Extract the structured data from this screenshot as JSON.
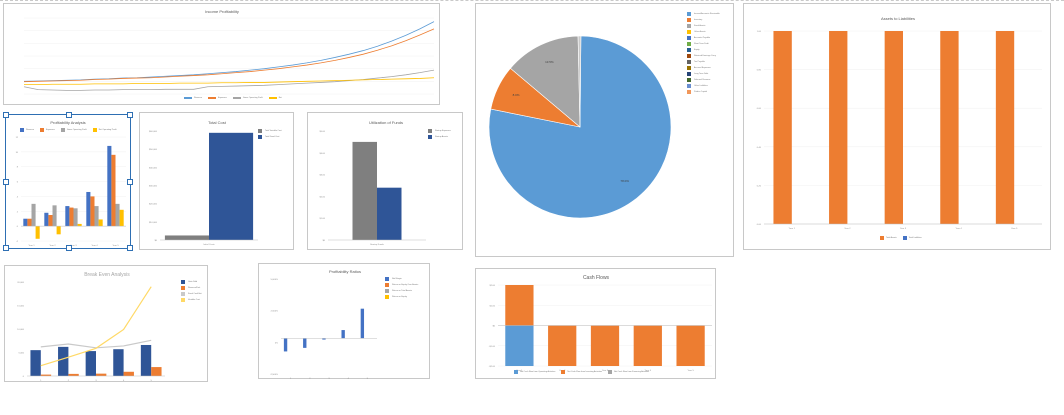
{
  "colors": {
    "blue": "#5b9bd5",
    "orange": "#ed7d31",
    "gray": "#a5a5a5",
    "yellow": "#ffc000",
    "navy": "#2f5597",
    "darkgray": "#7f7f7f",
    "text": "#595959"
  },
  "chart_data": [
    {
      "id": "income",
      "type": "line",
      "title": "Income Profitability",
      "y_ticks": [
        "",
        "",
        "",
        "",
        "",
        "",
        ""
      ],
      "x": [
        1,
        2,
        3,
        4,
        5,
        6,
        7,
        8,
        9,
        10,
        11,
        12,
        13,
        14,
        15,
        16,
        17,
        18,
        19,
        20,
        21,
        22,
        23,
        24,
        25,
        26,
        27,
        28,
        29,
        30
      ],
      "series": [
        {
          "name": "Revenue",
          "color": "#5b9bd5",
          "values": [
            0.5,
            0.6,
            0.7,
            0.8,
            0.9,
            1.1,
            1.2,
            1.4,
            1.5,
            1.7,
            1.9,
            2.1,
            2.3,
            2.6,
            2.9,
            3.2,
            3.6,
            4.0,
            4.5,
            5.0,
            5.6,
            6.3,
            7.1,
            8.0,
            9.0,
            10.2,
            11.6,
            13.2,
            15.0,
            17.0
          ]
        },
        {
          "name": "Expenses",
          "color": "#ed7d31",
          "values": [
            0.4,
            0.5,
            0.6,
            0.7,
            0.8,
            1.0,
            1.1,
            1.3,
            1.4,
            1.5,
            1.7,
            1.9,
            2.1,
            2.3,
            2.6,
            2.9,
            3.2,
            3.6,
            4.0,
            4.5,
            5.0,
            5.6,
            6.3,
            7.1,
            8.0,
            9.1,
            10.3,
            11.7,
            13.3,
            15.0
          ]
        },
        {
          "name": "Gross Operating Profit",
          "color": "#a5a5a5",
          "values": [
            -1.0,
            -1.8,
            -1.9,
            -2.0,
            -2.0,
            -1.9,
            -1.9,
            -1.8,
            -1.8,
            -1.8,
            -1.7,
            -1.7,
            -1.7,
            -1.0,
            -0.9,
            -0.8,
            -0.7,
            -0.6,
            -0.4,
            -0.2,
            0.0,
            0.2,
            0.4,
            0.7,
            1.0,
            1.4,
            1.8,
            2.3,
            2.9,
            3.6
          ]
        },
        {
          "name": "Net",
          "color": "#ffc000",
          "values": [
            -0.4,
            -0.4,
            -0.3,
            -0.3,
            -0.3,
            -0.2,
            -0.2,
            -0.2,
            -0.1,
            -0.1,
            -0.1,
            0.0,
            0.0,
            0.0,
            0.1,
            0.1,
            0.2,
            0.2,
            0.3,
            0.4,
            0.5,
            0.6,
            0.7,
            0.8,
            0.9,
            1.0,
            1.1,
            1.2,
            1.3,
            1.5
          ]
        }
      ],
      "legend": [
        "Revenue",
        "Expenses",
        "Gross Operating Profit",
        "Net"
      ]
    },
    {
      "id": "pie",
      "type": "pie",
      "slices": [
        {
          "label": "78.0%",
          "value": 78.0,
          "color": "#5b9bd5"
        },
        {
          "label": "8.0%",
          "value": 8.0,
          "color": "#ed7d31"
        },
        {
          "label": "13.5%",
          "value": 13.5,
          "color": "#a5a5a5"
        },
        {
          "label": "",
          "value": 0.5,
          "color": "#c9c9c9"
        }
      ],
      "legend": [
        {
          "name": "Income/Accounts Receivable",
          "color": "#5b9bd5"
        },
        {
          "name": "Inventory",
          "color": "#ed7d31"
        },
        {
          "name": "Fixed Assets",
          "color": "#a5a5a5"
        },
        {
          "name": "Other Assets",
          "color": "#ffc000"
        },
        {
          "name": "Accounts Payable",
          "color": "#4472c4"
        },
        {
          "name": "Short Term Debt",
          "color": "#70ad47"
        },
        {
          "name": "Equity",
          "color": "#255e91"
        },
        {
          "name": "Retained Earnings Carry",
          "color": "#9e480e"
        },
        {
          "name": "Tax Payable",
          "color": "#636363"
        },
        {
          "name": "Accrued Expenses",
          "color": "#997300"
        },
        {
          "name": "Long Term Debt",
          "color": "#264478"
        },
        {
          "name": "Deferred Revenue",
          "color": "#43682b"
        },
        {
          "name": "Other Liabilities",
          "color": "#698ed0"
        },
        {
          "name": "Paid-in Capital",
          "color": "#f1975a"
        }
      ]
    },
    {
      "id": "assets",
      "type": "bar",
      "title": "Assets to Liabilities",
      "categories": [
        "Year 1",
        "Year 2",
        "Year 3",
        "Year 4",
        "Year 5"
      ],
      "ylim": [
        0,
        1
      ],
      "y_ticks": [
        "1.00",
        "0.80",
        "0.60",
        "0.40",
        "0.20",
        "0.00"
      ],
      "series": [
        {
          "name": "Total Assets",
          "color": "#ed7d31",
          "values": [
            1,
            1,
            1,
            1,
            1
          ]
        },
        {
          "name": "Total Liabilities",
          "color": "#4472c4",
          "values": [
            0,
            0,
            0,
            0,
            0
          ]
        }
      ],
      "legend": [
        "Total Assets",
        "Total Liabilities"
      ]
    },
    {
      "id": "profit",
      "type": "bar",
      "title": "Profitability Analysis",
      "categories": [
        "Year 1",
        "Year 2",
        "Year 3",
        "Year 4",
        "Year 5"
      ],
      "ylim": [
        -2,
        12
      ],
      "y_ticks": [
        "12",
        "10",
        "8",
        "6",
        "4",
        "2",
        "0",
        "-2"
      ],
      "series": [
        {
          "name": "Revenue",
          "color": "#4472c4",
          "values": [
            1.0,
            1.8,
            2.7,
            4.6,
            10.8
          ]
        },
        {
          "name": "Expenses",
          "color": "#ed7d31",
          "values": [
            1.0,
            1.5,
            2.5,
            4.0,
            9.6
          ]
        },
        {
          "name": "Gross Operating Profit",
          "color": "#a5a5a5",
          "values": [
            3.0,
            2.8,
            2.4,
            2.7,
            3.0
          ]
        },
        {
          "name": "Net Operating Profit",
          "color": "#ffc000",
          "values": [
            -1.7,
            -1.1,
            0.3,
            0.9,
            2.2
          ]
        }
      ],
      "legend": [
        "Revenue",
        "Expenses",
        "Gross Operating Profit",
        "Net Operating Profit"
      ]
    },
    {
      "id": "totalcost",
      "type": "bar",
      "title": "Total Cost",
      "categories": [
        "Initial Costs"
      ],
      "ylim": [
        0,
        60000
      ],
      "y_ticks": [
        "$60,000",
        "$50,000",
        "$40,000",
        "$30,000",
        "$20,000",
        "$10,000",
        "$0"
      ],
      "series": [
        {
          "name": "Total Variable Cost",
          "color": "#7f7f7f",
          "values": [
            2500
          ]
        },
        {
          "name": "Total Fixed Cost",
          "color": "#2f5597",
          "values": [
            59000
          ]
        }
      ],
      "legend": [
        "Total Variable Cost",
        "Total Fixed Cost"
      ]
    },
    {
      "id": "utilization",
      "type": "bar",
      "title": "Utilization of Funds",
      "categories": [
        "Startup Funds"
      ],
      "ylim": [
        0,
        5
      ],
      "y_ticks": [
        "$5.00",
        "$4.00",
        "$3.00",
        "$2.00",
        "$1.00",
        "$0"
      ],
      "series": [
        {
          "name": "Startup Expenses",
          "color": "#7f7f7f",
          "values": [
            4.5
          ]
        },
        {
          "name": "Startup Assets",
          "color": "#2f5597",
          "values": [
            2.4
          ]
        }
      ],
      "legend": [
        "Startup Expenses",
        "Startup Assets"
      ]
    },
    {
      "id": "breakeven",
      "type": "bar",
      "title": "Break Even Analysis",
      "categories": [
        "1",
        "2",
        "3",
        "4",
        "5"
      ],
      "ylim": [
        0,
        20000
      ],
      "y_ticks": [
        "20,000",
        "15,000",
        "10,000",
        "5,000",
        "0"
      ],
      "series": [
        {
          "name": "Units Sold",
          "type": "bar",
          "color": "#2f5597",
          "values": [
            5500,
            6200,
            5300,
            5700,
            6600
          ]
        },
        {
          "name": "Revenue/Unit",
          "type": "bar",
          "color": "#ed7d31",
          "values": [
            300,
            450,
            500,
            900,
            1900
          ]
        },
        {
          "name": "Fixed Cost/Unit",
          "type": "line",
          "color": "#c9c9c9",
          "values": [
            6200,
            6800,
            6000,
            6400,
            7600
          ]
        },
        {
          "name": "Variable Cost",
          "type": "line",
          "color": "#ffd966",
          "values": [
            2200,
            4000,
            5900,
            9900,
            19000
          ]
        }
      ],
      "legend": [
        "Units Sold",
        "Revenue/Unit",
        "Fixed Cost/Unit",
        "Variable Cost"
      ]
    },
    {
      "id": "ratios",
      "type": "bar",
      "title": "Profitability Ratios",
      "categories": [
        "1",
        "2",
        "3",
        "4",
        "5"
      ],
      "ylim": [
        -3000,
        5000
      ],
      "y_ticks": [
        "5,000%",
        "2,500%",
        "0%",
        "-2,500%"
      ],
      "series": [
        {
          "name": "Net Margin",
          "color": "#4472c4",
          "values": [
            -1100,
            -800,
            -100,
            700,
            2500
          ]
        },
        {
          "name": "Return on Equity Over Assets",
          "color": "#ed7d31",
          "values": [
            0,
            0,
            0,
            0,
            0
          ]
        },
        {
          "name": "Return on Total Assets",
          "color": "#a5a5a5",
          "values": [
            0,
            0,
            0,
            0,
            0
          ]
        },
        {
          "name": "Return on Equity",
          "color": "#ffc000",
          "values": [
            0,
            0,
            0,
            0,
            0
          ]
        }
      ],
      "legend": [
        "Net Margin",
        "Return on Equity Over Assets",
        "Return on Total Assets",
        "Return on Equity"
      ]
    },
    {
      "id": "cashflow",
      "type": "bar",
      "title": "Cash Flows",
      "categories": [
        "Year 1",
        "Year 2",
        "Year 3",
        "Year 4",
        "Year 5"
      ],
      "ylim": [
        -2,
        2
      ],
      "y_ticks": [
        "$2.00",
        "$1.00",
        "$0",
        "-$1.00",
        "-$2.00"
      ],
      "series": [
        {
          "name": "Net Cash Flow from Operating Activities",
          "color": "#5b9bd5",
          "values": [
            -2.0,
            0,
            0,
            0,
            0
          ]
        },
        {
          "name": "Net Cash Flow from Investing Activities",
          "color": "#ed7d31",
          "values": [
            2.0,
            -2.0,
            -2.0,
            -2.0,
            -2.0
          ]
        },
        {
          "name": "Net Cash Flow from Financing Activities",
          "color": "#a5a5a5",
          "values": [
            0,
            0,
            0,
            0,
            0
          ]
        }
      ],
      "legend": [
        "Net Cash Flow from Operating Activities",
        "Net Cash Flow from Investing Activities",
        "Net Cash Flow from Financing Activities"
      ]
    }
  ]
}
